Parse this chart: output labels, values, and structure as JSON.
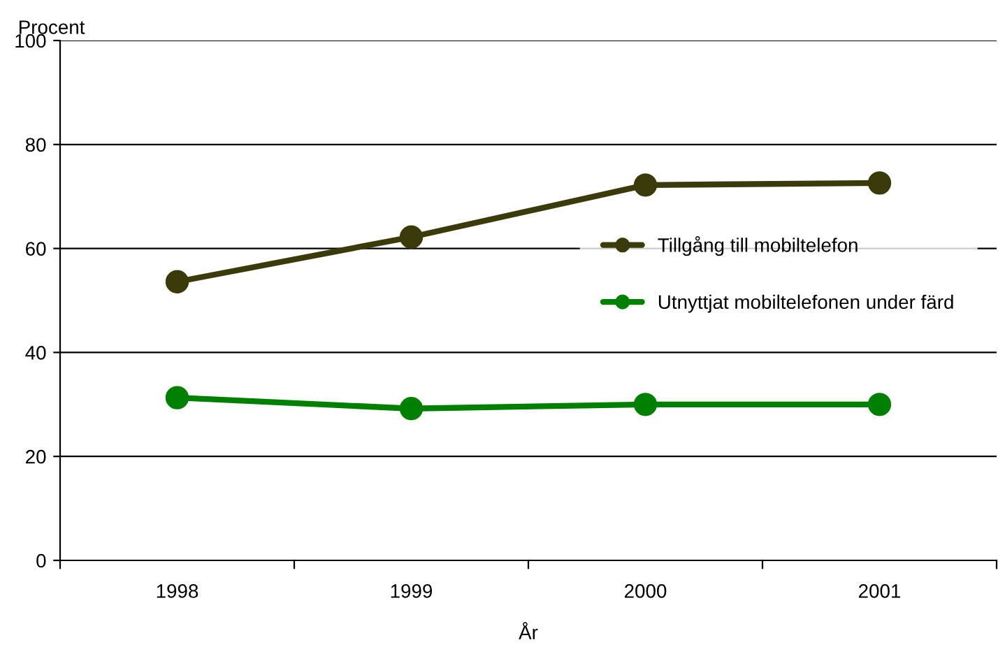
{
  "chart_data": {
    "type": "line",
    "xlabel": "År",
    "ylabel": "Procent",
    "categories": [
      "1998",
      "1999",
      "2000",
      "2001"
    ],
    "series": [
      {
        "name": "Tillgång till mobiltelefon",
        "color": "#3a3a0a",
        "values": [
          53.6,
          62.2,
          72.2,
          72.6
        ]
      },
      {
        "name": "Utnyttjat mobiltelefonen under färd",
        "color": "#008000",
        "values": [
          31.3,
          29.2,
          30.0,
          30.0
        ]
      }
    ],
    "ylim": [
      0,
      100
    ],
    "yticks": [
      0,
      20,
      40,
      60,
      80,
      100
    ],
    "grid": "y",
    "legend": "right",
    "marker": "circle",
    "line_style": "solid"
  }
}
